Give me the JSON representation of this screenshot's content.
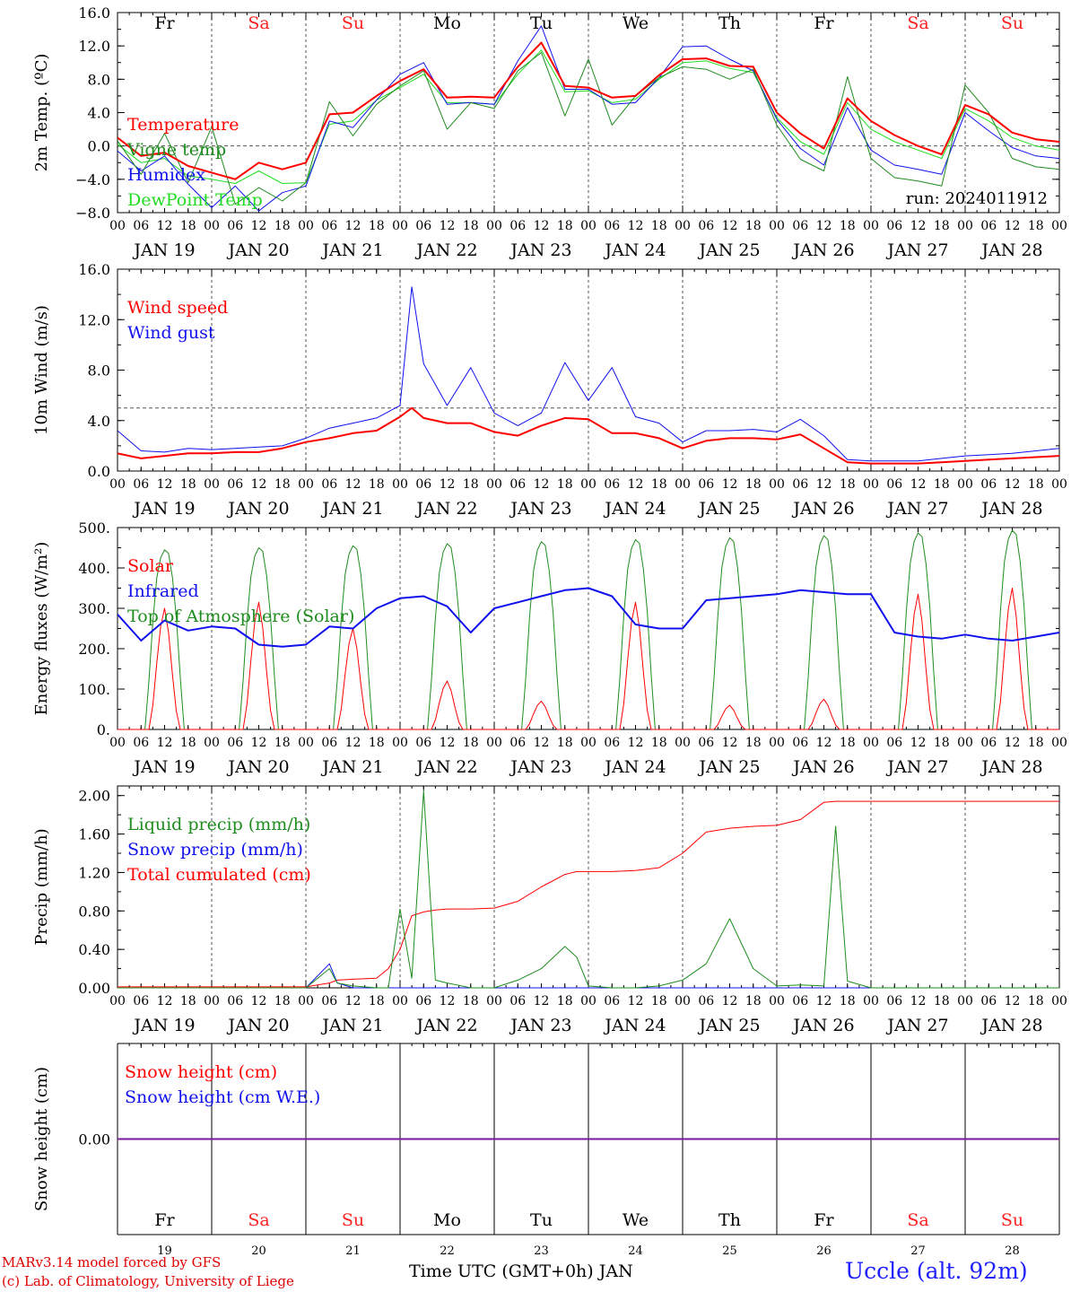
{
  "colors": {
    "red": "#ff0000",
    "green": "#1e8c1e",
    "blue": "#1010ee",
    "lightgreen": "#22dd22",
    "purple": "#7a1a9a",
    "grid": "#555555"
  },
  "days": [
    {
      "abbr": "Fr",
      "num": "19",
      "weekend": false
    },
    {
      "abbr": "Sa",
      "num": "20",
      "weekend": true
    },
    {
      "abbr": "Su",
      "num": "21",
      "weekend": true
    },
    {
      "abbr": "Mo",
      "num": "22",
      "weekend": false
    },
    {
      "abbr": "Tu",
      "num": "23",
      "weekend": false
    },
    {
      "abbr": "We",
      "num": "24",
      "weekend": false
    },
    {
      "abbr": "Th",
      "num": "25",
      "weekend": false
    },
    {
      "abbr": "Fr",
      "num": "26",
      "weekend": false
    },
    {
      "abbr": "Sa",
      "num": "27",
      "weekend": true
    },
    {
      "abbr": "Su",
      "num": "28",
      "weekend": true
    }
  ],
  "hour_ticks": [
    "00",
    "06",
    "12",
    "18"
  ],
  "final_hour": "00",
  "date_labels": [
    "JAN 19",
    "JAN 20",
    "JAN 21",
    "JAN 22",
    "JAN 23",
    "JAN 24",
    "JAN 25",
    "JAN 26",
    "JAN 27",
    "JAN 28"
  ],
  "footer": {
    "credit_line1": "MARv3.14 model forced by GFS",
    "credit_line2": "(c) Lab. of Climatology, University of Liege",
    "x_title": "Time UTC (GMT+0h) JAN",
    "station": "Uccle (alt. 92m)"
  },
  "chart_data": [
    {
      "id": "temp",
      "type": "line",
      "ylabel": "2m Temp. (ºC)",
      "ylim": [
        -8,
        16
      ],
      "yticks": [
        "16.0",
        "12.0",
        "8.0",
        "4.0",
        "0.0",
        "−4.0",
        "−8.0"
      ],
      "ytick_values": [
        16,
        12,
        8,
        4,
        0,
        -4,
        -8
      ],
      "ref_line": 0,
      "annotation": "run: 2024011912",
      "x_hours": [
        0,
        6,
        12,
        18,
        24,
        30,
        36,
        42,
        48,
        54,
        60,
        66,
        72,
        78,
        84,
        90,
        96,
        102,
        108,
        114,
        120,
        126,
        132,
        138,
        144,
        150,
        156,
        162,
        168,
        174,
        180,
        186,
        192,
        198,
        204,
        210,
        216,
        222,
        228,
        234,
        240
      ],
      "series": [
        {
          "name": "Temperature",
          "color": "red",
          "width": 2,
          "values": [
            1.0,
            -1.2,
            -0.8,
            -2.4,
            -3.2,
            -4.0,
            -2.0,
            -2.8,
            -2.0,
            3.8,
            4.0,
            6.0,
            7.8,
            9.2,
            5.8,
            5.9,
            5.8,
            9.5,
            12.4,
            7.2,
            7.0,
            5.8,
            6.0,
            8.5,
            10.4,
            10.5,
            9.6,
            9.5,
            4.0,
            1.5,
            -0.3,
            5.7,
            3.0,
            1.3,
            0.0,
            -1.0,
            4.9,
            3.8,
            1.6,
            0.8,
            0.5
          ]
        },
        {
          "name": "Vigne temp",
          "color": "green",
          "width": 1,
          "values": [
            0.6,
            -3.4,
            1.5,
            -4.4,
            2.3,
            -7.0,
            -5.0,
            -6.6,
            -4.4,
            5.3,
            1.2,
            5.0,
            7.2,
            9.0,
            2.0,
            5.2,
            4.5,
            9.0,
            11.2,
            3.6,
            10.4,
            2.5,
            6.0,
            8.2,
            9.5,
            9.2,
            8.0,
            9.2,
            2.5,
            -1.6,
            -3.0,
            8.3,
            -1.5,
            -3.8,
            -4.2,
            -4.8,
            7.3,
            4.0,
            -1.5,
            -2.5,
            -2.8
          ]
        },
        {
          "name": "Humidex",
          "color": "blue",
          "width": 1,
          "values": [
            -0.6,
            -3.0,
            -1.2,
            -4.6,
            -7.4,
            -4.8,
            -7.8,
            -5.6,
            -4.8,
            3.0,
            2.2,
            5.5,
            8.6,
            10.0,
            5.0,
            5.2,
            5.0,
            10.2,
            14.4,
            6.8,
            6.8,
            5.0,
            5.2,
            8.2,
            11.9,
            12.0,
            10.4,
            9.0,
            3.2,
            -0.3,
            -2.3,
            4.6,
            -0.5,
            -2.3,
            -2.8,
            -3.4,
            4.0,
            1.8,
            -0.2,
            -1.2,
            -1.5
          ]
        },
        {
          "name": "DewPoint Temp",
          "color": "lightgreen",
          "width": 1,
          "values": [
            0.2,
            -2.0,
            -1.5,
            -3.6,
            -4.0,
            -4.5,
            -3.0,
            -4.5,
            -4.4,
            2.6,
            3.0,
            5.5,
            7.0,
            8.6,
            5.2,
            5.2,
            5.0,
            8.6,
            11.5,
            6.5,
            6.6,
            5.2,
            5.6,
            8.0,
            10.0,
            10.2,
            9.3,
            8.8,
            3.4,
            0.5,
            -1.0,
            5.2,
            2.0,
            0.5,
            -0.5,
            -1.5,
            4.5,
            3.0,
            1.0,
            0.0,
            -0.5
          ]
        }
      ]
    },
    {
      "id": "wind",
      "type": "line",
      "ylabel": "10m Wind (m/s)",
      "ylim": [
        0,
        16
      ],
      "yticks": [
        "16.0",
        "12.0",
        "8.0",
        "4.0",
        "0.0"
      ],
      "ytick_values": [
        16,
        12,
        8,
        4,
        0
      ],
      "ref_line": 5,
      "x_hours": [
        0,
        6,
        12,
        18,
        24,
        30,
        36,
        42,
        48,
        54,
        60,
        66,
        72,
        75,
        78,
        84,
        90,
        96,
        102,
        108,
        114,
        120,
        126,
        132,
        138,
        144,
        150,
        156,
        162,
        168,
        174,
        180,
        186,
        192,
        198,
        204,
        210,
        216,
        222,
        228,
        234,
        240
      ],
      "series": [
        {
          "name": "Wind speed",
          "color": "red",
          "width": 2,
          "values": [
            1.4,
            1.0,
            1.2,
            1.4,
            1.4,
            1.5,
            1.5,
            1.8,
            2.3,
            2.6,
            3.0,
            3.2,
            4.3,
            5.0,
            4.2,
            3.8,
            3.8,
            3.1,
            2.8,
            3.6,
            4.2,
            4.1,
            3.0,
            3.0,
            2.6,
            1.8,
            2.4,
            2.6,
            2.6,
            2.5,
            2.9,
            1.8,
            0.7,
            0.6,
            0.6,
            0.6,
            0.7,
            0.8,
            0.9,
            1.0,
            1.1,
            1.2
          ]
        },
        {
          "name": "Wind gust",
          "color": "blue",
          "width": 1,
          "values": [
            3.2,
            1.6,
            1.5,
            1.8,
            1.7,
            1.8,
            1.9,
            2.0,
            2.6,
            3.4,
            3.8,
            4.2,
            5.2,
            14.6,
            8.5,
            5.2,
            8.2,
            4.6,
            3.6,
            4.6,
            8.6,
            5.6,
            8.2,
            4.3,
            3.8,
            2.3,
            3.2,
            3.2,
            3.3,
            3.1,
            4.1,
            2.8,
            0.9,
            0.8,
            0.8,
            0.8,
            1.0,
            1.2,
            1.3,
            1.4,
            1.6,
            1.8
          ]
        }
      ]
    },
    {
      "id": "energy",
      "type": "line",
      "ylabel": "Energy fluxes (W/m²)",
      "ylim": [
        0,
        500
      ],
      "yticks": [
        "500.",
        "400.",
        "300.",
        "200.",
        "100.",
        "0."
      ],
      "ytick_values": [
        500,
        400,
        300,
        200,
        100,
        0
      ],
      "toa_peaks": [
        445,
        450,
        455,
        460,
        465,
        470,
        475,
        480,
        487,
        493
      ],
      "solar_peaks": [
        300,
        315,
        250,
        120,
        70,
        315,
        60,
        75,
        335,
        350
      ],
      "series": [
        {
          "name": "Solar",
          "color": "red",
          "width": 1
        },
        {
          "name": "Infrared",
          "color": "blue",
          "width": 2,
          "x_hours": [
            0,
            6,
            12,
            18,
            24,
            30,
            36,
            42,
            48,
            54,
            60,
            66,
            72,
            78,
            84,
            90,
            96,
            102,
            108,
            114,
            120,
            126,
            132,
            138,
            144,
            150,
            156,
            162,
            168,
            174,
            180,
            186,
            192,
            198,
            204,
            210,
            216,
            222,
            228,
            234,
            240
          ],
          "values": [
            285,
            220,
            270,
            245,
            255,
            250,
            210,
            205,
            210,
            255,
            250,
            300,
            325,
            330,
            305,
            240,
            300,
            315,
            330,
            345,
            350,
            330,
            260,
            250,
            250,
            320,
            325,
            330,
            335,
            345,
            340,
            335,
            335,
            240,
            230,
            225,
            235,
            225,
            220,
            230,
            240
          ]
        },
        {
          "name": "Top of Atmosphere (Solar)",
          "color": "green",
          "width": 1
        }
      ]
    },
    {
      "id": "precip",
      "type": "line",
      "ylabel": "Precip (mm/h)",
      "ylim": [
        0,
        2.1
      ],
      "yticks": [
        "2.00",
        "1.60",
        "1.20",
        "0.80",
        "0.40",
        "0.00"
      ],
      "ytick_values": [
        2.0,
        1.6,
        1.2,
        0.8,
        0.4,
        0.0
      ],
      "x_hours": [
        0,
        6,
        12,
        18,
        24,
        30,
        36,
        42,
        48,
        54,
        56,
        60,
        66,
        69,
        72,
        75,
        78,
        81,
        84,
        90,
        96,
        102,
        108,
        114,
        117,
        120,
        126,
        132,
        138,
        144,
        150,
        156,
        162,
        168,
        174,
        180,
        183,
        186,
        192,
        198,
        204,
        210,
        216,
        222,
        228,
        234,
        240
      ],
      "series": [
        {
          "name": "Liquid precip (mm/h)",
          "color": "green",
          "width": 1,
          "values": [
            0,
            0,
            0,
            0,
            0,
            0,
            0,
            0,
            0,
            0.2,
            0.05,
            0.02,
            0,
            0,
            0.82,
            0.1,
            2.05,
            0.08,
            0.05,
            0,
            0,
            0.08,
            0.2,
            0.43,
            0.32,
            0.02,
            0,
            0,
            0.02,
            0.08,
            0.25,
            0.72,
            0.2,
            0.02,
            0.03,
            0.02,
            1.68,
            0.07,
            0,
            0,
            0,
            0,
            0,
            0,
            0,
            0,
            0
          ]
        },
        {
          "name": "Snow precip (mm/h)",
          "color": "blue",
          "width": 1,
          "values": [
            0,
            0,
            0,
            0,
            0,
            0,
            0,
            0,
            0,
            0.25,
            0.05,
            0,
            0,
            0,
            0,
            0,
            0,
            0,
            0,
            0,
            0,
            0,
            0,
            0,
            0,
            0,
            0,
            0,
            0,
            0,
            0,
            0,
            0,
            0,
            0,
            0,
            0,
            0,
            0,
            0,
            0,
            0,
            0,
            0,
            0,
            0,
            0
          ]
        },
        {
          "name": "Total cumulated (cm)",
          "color": "red",
          "width": 1,
          "values": [
            0.01,
            0.01,
            0.01,
            0.01,
            0.01,
            0.01,
            0.01,
            0.01,
            0.01,
            0.05,
            0.08,
            0.09,
            0.1,
            0.2,
            0.4,
            0.75,
            0.79,
            0.81,
            0.82,
            0.82,
            0.83,
            0.9,
            1.05,
            1.18,
            1.21,
            1.21,
            1.21,
            1.22,
            1.25,
            1.4,
            1.62,
            1.66,
            1.68,
            1.69,
            1.75,
            1.93,
            1.94,
            1.94,
            1.94,
            1.94,
            1.94,
            1.94,
            1.94,
            1.94,
            1.94,
            1.94,
            1.94
          ]
        }
      ]
    },
    {
      "id": "snow",
      "type": "line",
      "ylabel": "Snow height (cm)",
      "ylim": [
        -1,
        1
      ],
      "yticks": [
        "0.00"
      ],
      "ytick_values": [
        0
      ],
      "x_hours": [
        0,
        240
      ],
      "series": [
        {
          "name": "Snow height (cm)",
          "color": "red",
          "width": 1,
          "values": [
            0,
            0
          ]
        },
        {
          "name": "Snow height (cm W.E.)",
          "color": "blue",
          "width": 1,
          "values": [
            0,
            0
          ]
        }
      ],
      "combined_line_color": "purple"
    }
  ]
}
